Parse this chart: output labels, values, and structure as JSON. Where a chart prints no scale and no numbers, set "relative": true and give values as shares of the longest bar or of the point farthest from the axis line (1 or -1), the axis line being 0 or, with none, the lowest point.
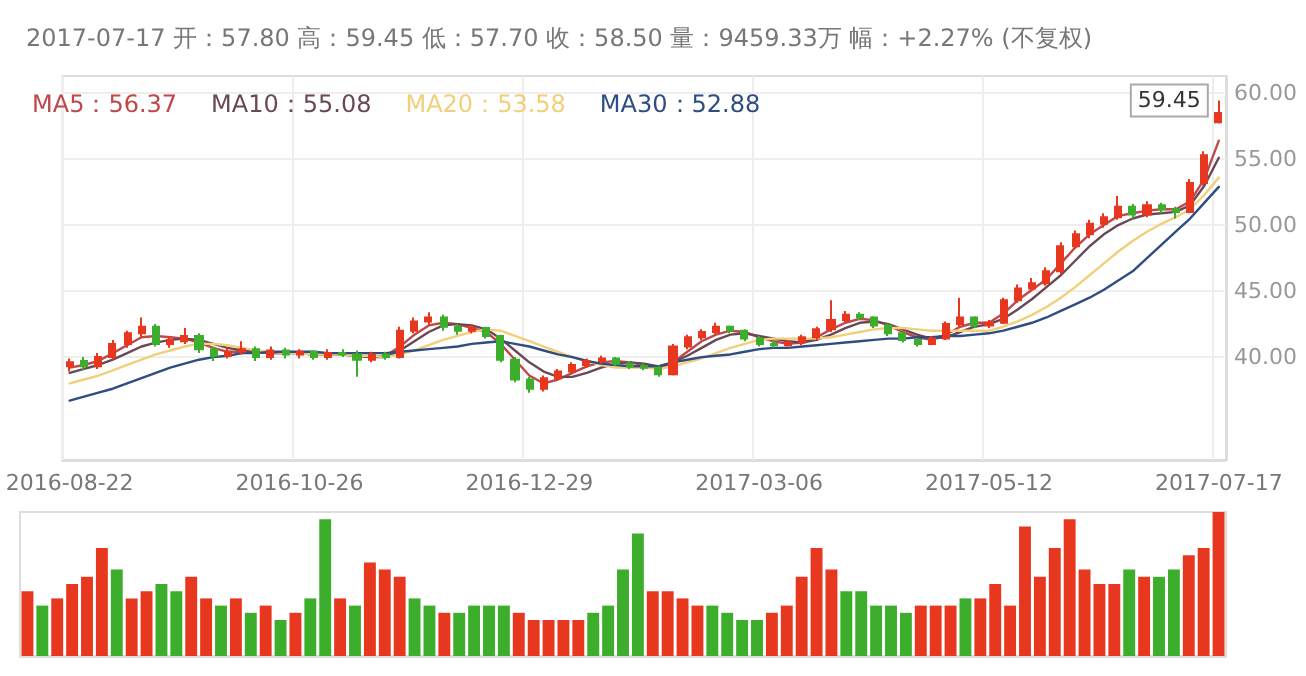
{
  "chart_data": [
    {
      "type": "candlestick",
      "title": "2017-07-17 开：57.80 高：59.45 低：57.70 收：58.50 量：9459.33万 幅：+2.27% (不复权)",
      "categories": [
        "2016-08-22",
        null,
        null,
        null,
        null,
        null,
        null,
        null,
        null,
        null,
        null,
        null,
        null,
        null,
        null,
        null,
        "2016-10-26",
        null,
        null,
        null,
        null,
        null,
        null,
        null,
        null,
        null,
        null,
        null,
        null,
        null,
        null,
        null,
        "2016-12-29",
        null,
        null,
        null,
        null,
        null,
        null,
        null,
        null,
        null,
        null,
        null,
        null,
        null,
        null,
        null,
        "2017-03-06",
        null,
        null,
        null,
        null,
        null,
        null,
        null,
        null,
        null,
        null,
        null,
        null,
        null,
        null,
        null,
        "2017-05-12",
        null,
        null,
        null,
        null,
        null,
        null,
        null,
        null,
        null,
        null,
        null,
        null,
        null,
        null,
        null,
        "2017-07-17"
      ],
      "ohlc": [
        [
          39.3,
          39.9,
          38.9,
          39.6
        ],
        [
          39.7,
          40.0,
          39.0,
          39.3
        ],
        [
          39.3,
          40.3,
          39.1,
          40.0
        ],
        [
          40.0,
          41.3,
          39.8,
          41.0
        ],
        [
          41.0,
          42.0,
          40.7,
          41.8
        ],
        [
          41.8,
          43.0,
          41.5,
          42.3
        ],
        [
          42.3,
          42.5,
          40.8,
          41.0
        ],
        [
          41.0,
          41.6,
          40.7,
          41.3
        ],
        [
          41.2,
          42.2,
          41.0,
          41.6
        ],
        [
          41.6,
          41.8,
          40.3,
          40.6
        ],
        [
          40.6,
          40.8,
          39.7,
          40.1
        ],
        [
          40.1,
          40.7,
          39.9,
          40.4
        ],
        [
          40.4,
          41.2,
          40.2,
          40.6
        ],
        [
          40.6,
          40.8,
          39.7,
          40.0
        ],
        [
          40.0,
          40.8,
          39.8,
          40.5
        ],
        [
          40.5,
          40.7,
          39.9,
          40.2
        ],
        [
          40.2,
          40.6,
          39.9,
          40.4
        ],
        [
          40.4,
          40.5,
          39.8,
          40.0
        ],
        [
          40.0,
          40.6,
          39.8,
          40.3
        ],
        [
          40.3,
          40.6,
          40.0,
          40.2
        ],
        [
          40.2,
          40.5,
          38.5,
          39.8
        ],
        [
          39.8,
          40.4,
          39.6,
          40.2
        ],
        [
          40.2,
          40.4,
          39.8,
          40.0
        ],
        [
          40.0,
          42.3,
          39.9,
          42.0
        ],
        [
          42.0,
          43.0,
          41.8,
          42.7
        ],
        [
          42.7,
          43.4,
          42.4,
          43.0
        ],
        [
          43.0,
          43.2,
          42.0,
          42.3
        ],
        [
          42.3,
          42.5,
          41.7,
          42.0
        ],
        [
          42.0,
          42.5,
          41.8,
          42.2
        ],
        [
          42.2,
          42.3,
          41.4,
          41.6
        ],
        [
          41.6,
          41.7,
          39.6,
          39.8
        ],
        [
          39.8,
          40.0,
          38.1,
          38.3
        ],
        [
          38.3,
          38.5,
          37.3,
          37.6
        ],
        [
          37.6,
          38.6,
          37.4,
          38.4
        ],
        [
          38.4,
          39.1,
          38.2,
          38.9
        ],
        [
          38.9,
          39.6,
          38.7,
          39.4
        ],
        [
          39.4,
          39.9,
          39.2,
          39.7
        ],
        [
          39.7,
          40.1,
          39.5,
          39.9
        ],
        [
          39.9,
          40.0,
          39.3,
          39.5
        ],
        [
          39.5,
          39.7,
          39.1,
          39.3
        ],
        [
          39.3,
          39.5,
          39.0,
          39.2
        ],
        [
          39.2,
          39.3,
          38.5,
          38.7
        ],
        [
          38.7,
          41.0,
          38.6,
          40.8
        ],
        [
          40.8,
          41.7,
          40.6,
          41.5
        ],
        [
          41.5,
          42.1,
          41.3,
          41.9
        ],
        [
          41.9,
          42.6,
          41.7,
          42.3
        ],
        [
          42.3,
          42.4,
          41.8,
          42.0
        ],
        [
          42.0,
          42.1,
          41.2,
          41.4
        ],
        [
          41.4,
          41.6,
          40.8,
          41.0
        ],
        [
          41.0,
          41.3,
          40.7,
          40.9
        ],
        [
          40.9,
          41.3,
          40.8,
          41.1
        ],
        [
          41.1,
          41.7,
          40.9,
          41.5
        ],
        [
          41.5,
          42.3,
          41.3,
          42.1
        ],
        [
          42.1,
          44.3,
          41.9,
          42.8
        ],
        [
          42.8,
          43.5,
          42.6,
          43.2
        ],
        [
          43.2,
          43.4,
          42.8,
          43.0
        ],
        [
          43.0,
          43.1,
          42.2,
          42.4
        ],
        [
          42.4,
          42.5,
          41.6,
          41.8
        ],
        [
          41.8,
          41.9,
          41.1,
          41.3
        ],
        [
          41.3,
          41.4,
          40.8,
          41.0
        ],
        [
          41.0,
          41.6,
          40.9,
          41.4
        ],
        [
          41.4,
          42.7,
          41.3,
          42.5
        ],
        [
          42.5,
          44.5,
          42.3,
          43.0
        ],
        [
          43.0,
          43.1,
          42.2,
          42.4
        ],
        [
          42.4,
          42.8,
          42.2,
          42.6
        ],
        [
          42.6,
          44.5,
          42.5,
          44.3
        ],
        [
          44.3,
          45.5,
          44.1,
          45.2
        ],
        [
          45.2,
          46.0,
          45.0,
          45.6
        ],
        [
          45.6,
          46.8,
          45.4,
          46.5
        ],
        [
          46.5,
          48.7,
          46.3,
          48.4
        ],
        [
          48.4,
          49.6,
          48.2,
          49.3
        ],
        [
          49.3,
          50.4,
          49.0,
          50.1
        ],
        [
          50.1,
          50.9,
          49.8,
          50.6
        ],
        [
          50.6,
          52.2,
          50.4,
          51.4
        ],
        [
          51.4,
          51.6,
          50.5,
          50.8
        ],
        [
          50.8,
          51.8,
          50.6,
          51.5
        ],
        [
          51.5,
          51.7,
          50.9,
          51.2
        ],
        [
          51.2,
          51.4,
          50.5,
          51.0
        ],
        [
          51.0,
          53.5,
          50.9,
          53.2
        ],
        [
          53.2,
          55.6,
          53.0,
          55.3
        ],
        [
          57.8,
          59.45,
          57.7,
          58.5
        ]
      ],
      "colors": [
        "#e8371f",
        "#3cae2b",
        "#e8371f",
        "#e8371f",
        "#e8371f",
        "#e8371f",
        "#3cae2b",
        "#e8371f",
        "#e8371f",
        "#3cae2b",
        "#3cae2b",
        "#e8371f",
        "#e8371f",
        "#3cae2b",
        "#e8371f",
        "#3cae2b",
        "#e8371f",
        "#3cae2b",
        "#e8371f",
        "#3cae2b",
        "#3cae2b",
        "#e8371f",
        "#3cae2b",
        "#e8371f",
        "#e8371f",
        "#e8371f",
        "#3cae2b",
        "#3cae2b",
        "#e8371f",
        "#3cae2b",
        "#3cae2b",
        "#3cae2b",
        "#3cae2b",
        "#e8371f",
        "#e8371f",
        "#e8371f",
        "#e8371f",
        "#e8371f",
        "#3cae2b",
        "#3cae2b",
        "#3cae2b",
        "#3cae2b",
        "#e8371f",
        "#e8371f",
        "#e8371f",
        "#e8371f",
        "#3cae2b",
        "#3cae2b",
        "#3cae2b",
        "#3cae2b",
        "#e8371f",
        "#e8371f",
        "#e8371f",
        "#e8371f",
        "#e8371f",
        "#3cae2b",
        "#3cae2b",
        "#3cae2b",
        "#3cae2b",
        "#3cae2b",
        "#e8371f",
        "#e8371f",
        "#e8371f",
        "#3cae2b",
        "#e8371f",
        "#e8371f",
        "#e8371f",
        "#e8371f",
        "#e8371f",
        "#e8371f",
        "#e8371f",
        "#e8371f",
        "#e8371f",
        "#e8371f",
        "#3cae2b",
        "#e8371f",
        "#3cae2b",
        "#3cae2b",
        "#e8371f",
        "#e8371f",
        "#e8371f"
      ],
      "series": [
        {
          "type": "line",
          "name": "MA5：56.37",
          "color": "#c0474a",
          "values": [
            39.2,
            39.4,
            39.7,
            40.3,
            40.9,
            41.5,
            41.6,
            41.5,
            41.4,
            41.1,
            40.7,
            40.4,
            40.4,
            40.4,
            40.3,
            40.3,
            40.3,
            40.2,
            40.2,
            40.2,
            40.1,
            40.0,
            40.1,
            40.8,
            41.7,
            42.4,
            42.6,
            42.5,
            42.2,
            41.9,
            41.0,
            39.8,
            38.6,
            38.0,
            38.3,
            38.8,
            39.3,
            39.6,
            39.7,
            39.6,
            39.4,
            39.1,
            39.6,
            40.4,
            41.2,
            41.7,
            42.0,
            41.9,
            41.5,
            41.2,
            41.0,
            41.1,
            41.5,
            42.1,
            42.6,
            42.9,
            42.8,
            42.4,
            41.9,
            41.5,
            41.3,
            41.7,
            42.3,
            42.6,
            42.6,
            43.3,
            44.3,
            45.1,
            45.9,
            47.1,
            48.3,
            49.3,
            50.0,
            50.7,
            50.9,
            51.1,
            51.2,
            51.2,
            51.8,
            53.5,
            56.4
          ]
        },
        {
          "type": "line",
          "name": "MA10：55.08",
          "color": "#6a4855",
          "values": [
            38.8,
            39.1,
            39.4,
            39.8,
            40.3,
            40.8,
            41.1,
            41.3,
            41.4,
            41.3,
            41.0,
            40.7,
            40.5,
            40.4,
            40.3,
            40.3,
            40.3,
            40.2,
            40.2,
            40.2,
            40.1,
            40.0,
            40.0,
            40.5,
            41.2,
            41.9,
            42.4,
            42.5,
            42.4,
            42.1,
            41.4,
            40.5,
            39.6,
            38.9,
            38.5,
            38.5,
            38.8,
            39.2,
            39.5,
            39.6,
            39.5,
            39.3,
            39.6,
            40.1,
            40.7,
            41.3,
            41.7,
            41.8,
            41.6,
            41.4,
            41.2,
            41.1,
            41.3,
            41.7,
            42.2,
            42.6,
            42.7,
            42.5,
            42.1,
            41.7,
            41.4,
            41.5,
            41.9,
            42.3,
            42.5,
            42.9,
            43.6,
            44.4,
            45.3,
            46.2,
            47.3,
            48.4,
            49.3,
            50.0,
            50.5,
            50.8,
            50.9,
            51.0,
            51.5,
            53.0,
            55.1
          ]
        },
        {
          "type": "line",
          "name": "MA20：53.58",
          "color": "#f2cf7a",
          "values": [
            38.0,
            38.3,
            38.6,
            39.0,
            39.4,
            39.8,
            40.2,
            40.5,
            40.8,
            41.0,
            41.0,
            40.9,
            40.7,
            40.5,
            40.4,
            40.3,
            40.3,
            40.2,
            40.2,
            40.2,
            40.1,
            40.1,
            40.0,
            40.2,
            40.5,
            40.9,
            41.3,
            41.6,
            41.9,
            42.1,
            42.0,
            41.6,
            41.2,
            40.8,
            40.4,
            40.0,
            39.7,
            39.4,
            39.2,
            39.2,
            39.2,
            39.1,
            39.3,
            39.6,
            39.9,
            40.3,
            40.7,
            41.0,
            41.3,
            41.4,
            41.4,
            41.4,
            41.4,
            41.5,
            41.7,
            41.9,
            42.1,
            42.2,
            42.2,
            42.1,
            42.0,
            42.0,
            42.0,
            42.0,
            42.0,
            42.3,
            42.7,
            43.2,
            43.8,
            44.5,
            45.3,
            46.2,
            47.1,
            48.0,
            48.8,
            49.5,
            50.1,
            50.6,
            51.2,
            52.3,
            53.6
          ]
        },
        {
          "type": "line",
          "name": "MA30：52.88",
          "color": "#2f4d80",
          "values": [
            36.7,
            37.0,
            37.3,
            37.6,
            38.0,
            38.4,
            38.8,
            39.2,
            39.5,
            39.8,
            40.0,
            40.1,
            40.3,
            40.3,
            40.4,
            40.4,
            40.4,
            40.4,
            40.3,
            40.3,
            40.3,
            40.3,
            40.3,
            40.4,
            40.5,
            40.6,
            40.7,
            40.8,
            41.0,
            41.1,
            41.2,
            41.0,
            40.8,
            40.5,
            40.2,
            40.0,
            39.7,
            39.5,
            39.4,
            39.3,
            39.3,
            39.3,
            39.6,
            39.8,
            40.0,
            40.1,
            40.2,
            40.4,
            40.6,
            40.7,
            40.7,
            40.8,
            40.9,
            41.0,
            41.1,
            41.2,
            41.3,
            41.4,
            41.4,
            41.5,
            41.5,
            41.6,
            41.6,
            41.7,
            41.8,
            42.0,
            42.3,
            42.6,
            43.0,
            43.5,
            44.0,
            44.5,
            45.1,
            45.8,
            46.5,
            47.5,
            48.5,
            49.5,
            50.5,
            51.7,
            52.9
          ]
        }
      ],
      "ylim": [
        32.2,
        61.3
      ],
      "yticks": [
        {
          "value": 40,
          "label": "40.00"
        },
        {
          "value": 45,
          "label": "45.00"
        },
        {
          "value": 50,
          "label": "50.00"
        },
        {
          "value": 55,
          "label": "55.00"
        },
        {
          "value": 60,
          "label": "60.00"
        }
      ],
      "annotations": [
        {
          "text": "59.45",
          "x": "2017-07-17",
          "y": 59.45
        }
      ],
      "grid": true,
      "legend": "top left",
      "marker": "none"
    },
    {
      "type": "bar",
      "relative": true,
      "categories": [
        null,
        null,
        null,
        null,
        null,
        null,
        null,
        null,
        null,
        null,
        null,
        null,
        null,
        null,
        null,
        null,
        null,
        null,
        null,
        null,
        null,
        null,
        null,
        null,
        null,
        null,
        null,
        null,
        null,
        null,
        null,
        null,
        null,
        null,
        null,
        null,
        null,
        null,
        null,
        null,
        null,
        null,
        null,
        null,
        null,
        null,
        null,
        null,
        null,
        null,
        null,
        null,
        null,
        null,
        null,
        null,
        null,
        null,
        null,
        null,
        null,
        null,
        null,
        null,
        null,
        null,
        null,
        null,
        null,
        null,
        null,
        null,
        null,
        null,
        null,
        null,
        null,
        null,
        null,
        null,
        null
      ],
      "values": [
        0.45,
        0.35,
        0.4,
        0.5,
        0.55,
        0.75,
        0.6,
        0.4,
        0.45,
        0.5,
        0.45,
        0.55,
        0.4,
        0.35,
        0.4,
        0.3,
        0.35,
        0.25,
        0.3,
        0.4,
        0.95,
        0.4,
        0.35,
        0.65,
        0.6,
        0.55,
        0.4,
        0.35,
        0.3,
        0.3,
        0.35,
        0.35,
        0.35,
        0.3,
        0.25,
        0.25,
        0.25,
        0.25,
        0.3,
        0.35,
        0.6,
        0.85,
        0.45,
        0.45,
        0.4,
        0.35,
        0.35,
        0.3,
        0.25,
        0.25,
        0.3,
        0.35,
        0.55,
        0.75,
        0.6,
        0.45,
        0.45,
        0.35,
        0.35,
        0.3,
        0.35,
        0.35,
        0.35,
        0.4,
        0.4,
        0.5,
        0.35,
        0.9,
        0.55,
        0.75,
        0.95,
        0.6,
        0.5,
        0.5,
        0.6,
        0.55,
        0.55,
        0.6,
        0.7,
        0.75,
        1.0
      ],
      "colors": [
        "#e8371f",
        "#3cae2b",
        "#e8371f",
        "#e8371f",
        "#e8371f",
        "#e8371f",
        "#3cae2b",
        "#e8371f",
        "#e8371f",
        "#3cae2b",
        "#3cae2b",
        "#e8371f",
        "#e8371f",
        "#3cae2b",
        "#e8371f",
        "#3cae2b",
        "#e8371f",
        "#3cae2b",
        "#e8371f",
        "#3cae2b",
        "#3cae2b",
        "#e8371f",
        "#3cae2b",
        "#e8371f",
        "#e8371f",
        "#e8371f",
        "#3cae2b",
        "#3cae2b",
        "#e8371f",
        "#3cae2b",
        "#3cae2b",
        "#3cae2b",
        "#3cae2b",
        "#e8371f",
        "#e8371f",
        "#e8371f",
        "#e8371f",
        "#e8371f",
        "#3cae2b",
        "#3cae2b",
        "#3cae2b",
        "#3cae2b",
        "#e8371f",
        "#e8371f",
        "#e8371f",
        "#e8371f",
        "#3cae2b",
        "#3cae2b",
        "#3cae2b",
        "#3cae2b",
        "#e8371f",
        "#e8371f",
        "#e8371f",
        "#e8371f",
        "#e8371f",
        "#3cae2b",
        "#3cae2b",
        "#3cae2b",
        "#3cae2b",
        "#3cae2b",
        "#e8371f",
        "#e8371f",
        "#e8371f",
        "#3cae2b",
        "#e8371f",
        "#e8371f",
        "#e8371f",
        "#e8371f",
        "#e8371f",
        "#e8371f",
        "#e8371f",
        "#e8371f",
        "#e8371f",
        "#e8371f",
        "#3cae2b",
        "#e8371f",
        "#3cae2b",
        "#3cae2b",
        "#e8371f",
        "#e8371f",
        "#e8371f"
      ]
    }
  ]
}
